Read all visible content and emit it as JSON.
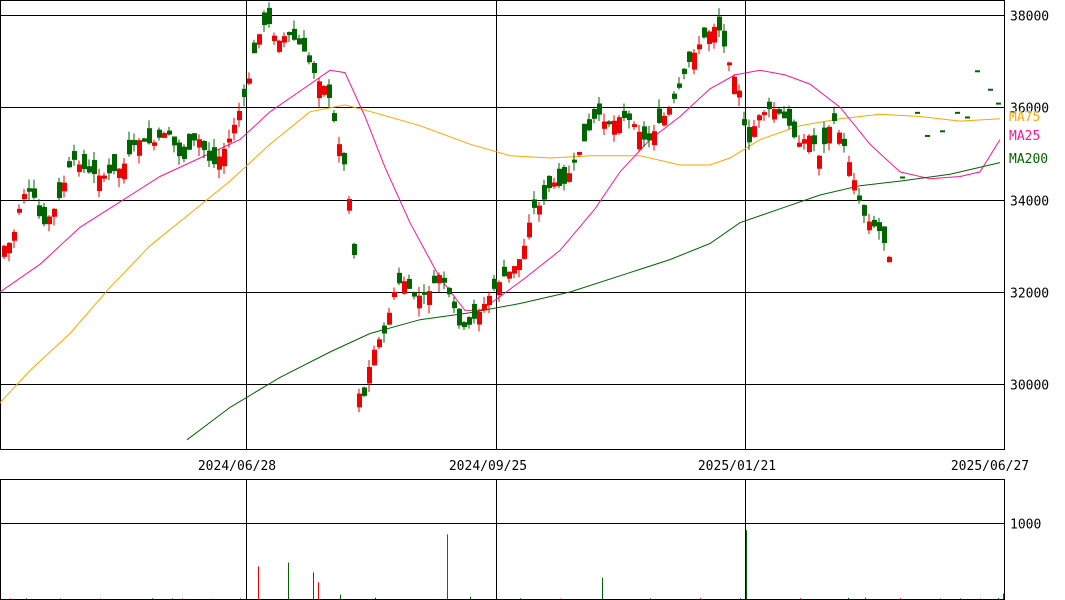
{
  "chart_data": [
    {
      "type": "candlestick",
      "x_ticks": [
        "2024/06/28",
        "2024/09/25",
        "2025/01/21",
        "2025/06/27"
      ],
      "y_ticks": [
        30000,
        32000,
        34000,
        36000,
        38000
      ],
      "ylim": [
        28600,
        38300
      ],
      "grid": true,
      "legend_placement": "right",
      "up_color": "#ee0000",
      "down_color": "#006400",
      "series": [
        {
          "name": "MA75",
          "color": "#ffa500",
          "points": [
            [
              0,
              29600
            ],
            [
              30,
              30300
            ],
            [
              70,
              31100
            ],
            [
              110,
              32100
            ],
            [
              150,
              33000
            ],
            [
              190,
              33700
            ],
            [
              230,
              34400
            ],
            [
              270,
              35200
            ],
            [
              310,
              35900
            ],
            [
              345,
              36050
            ],
            [
              380,
              35850
            ],
            [
              420,
              35600
            ],
            [
              470,
              35200
            ],
            [
              510,
              34950
            ],
            [
              550,
              34900
            ],
            [
              590,
              34950
            ],
            [
              640,
              34950
            ],
            [
              680,
              34750
            ],
            [
              710,
              34750
            ],
            [
              730,
              34900
            ],
            [
              760,
              35300
            ],
            [
              800,
              35600
            ],
            [
              840,
              35750
            ],
            [
              880,
              35850
            ],
            [
              920,
              35800
            ],
            [
              960,
              35700
            ],
            [
              1000,
              35750
            ]
          ]
        },
        {
          "name": "MA25",
          "color": "#ff1493",
          "points": [
            [
              0,
              32000
            ],
            [
              40,
              32600
            ],
            [
              80,
              33400
            ],
            [
              120,
              33950
            ],
            [
              160,
              34500
            ],
            [
              200,
              34900
            ],
            [
              240,
              35300
            ],
            [
              270,
              35900
            ],
            [
              300,
              36350
            ],
            [
              330,
              36800
            ],
            [
              345,
              36750
            ],
            [
              365,
              35800
            ],
            [
              385,
              34700
            ],
            [
              410,
              33500
            ],
            [
              440,
              32300
            ],
            [
              465,
              31600
            ],
            [
              480,
              31600
            ],
            [
              500,
              31900
            ],
            [
              525,
              32300
            ],
            [
              560,
              32900
            ],
            [
              595,
              33800
            ],
            [
              620,
              34600
            ],
            [
              650,
              35300
            ],
            [
              680,
              35800
            ],
            [
              710,
              36400
            ],
            [
              735,
              36700
            ],
            [
              760,
              36800
            ],
            [
              785,
              36700
            ],
            [
              810,
              36500
            ],
            [
              840,
              36000
            ],
            [
              870,
              35200
            ],
            [
              900,
              34600
            ],
            [
              930,
              34450
            ],
            [
              960,
              34500
            ],
            [
              980,
              34600
            ],
            [
              1000,
              35300
            ]
          ]
        },
        {
          "name": "MA200",
          "color": "#006400",
          "points": [
            [
              187,
              28800
            ],
            [
              230,
              29500
            ],
            [
              280,
              30150
            ],
            [
              330,
              30700
            ],
            [
              370,
              31100
            ],
            [
              420,
              31400
            ],
            [
              470,
              31550
            ],
            [
              520,
              31750
            ],
            [
              570,
              32000
            ],
            [
              620,
              32350
            ],
            [
              670,
              32700
            ],
            [
              710,
              33050
            ],
            [
              740,
              33500
            ],
            [
              780,
              33800
            ],
            [
              820,
              34100
            ],
            [
              860,
              34300
            ],
            [
              900,
              34400
            ],
            [
              950,
              34550
            ],
            [
              1000,
              34800
            ]
          ]
        }
      ],
      "volume": {
        "y_ticks": [
          1000
        ],
        "bars": [
          [
            10,
            7
          ],
          [
            26,
            9
          ],
          [
            60,
            6
          ],
          [
            100,
            5
          ],
          [
            152,
            10
          ],
          [
            172,
            9
          ],
          [
            182,
            6
          ],
          [
            212,
            4
          ],
          [
            240,
            8
          ],
          [
            258,
            430
          ],
          [
            288,
            480
          ],
          [
            313,
            350
          ],
          [
            318,
            220
          ],
          [
            340,
            60
          ],
          [
            375,
            18
          ],
          [
            447,
            850
          ],
          [
            470,
            30
          ],
          [
            520,
            10
          ],
          [
            560,
            5
          ],
          [
            602,
            280
          ],
          [
            650,
            8
          ],
          [
            700,
            12
          ],
          [
            740,
            10
          ],
          [
            746,
            905
          ],
          [
            800,
            8
          ],
          [
            848,
            15
          ],
          [
            865,
            20
          ],
          [
            900,
            10
          ],
          [
            940,
            6
          ],
          [
            960,
            8
          ],
          [
            980,
            5
          ],
          [
            998,
            14
          ],
          [
            1003,
            70
          ]
        ]
      }
    }
  ]
}
